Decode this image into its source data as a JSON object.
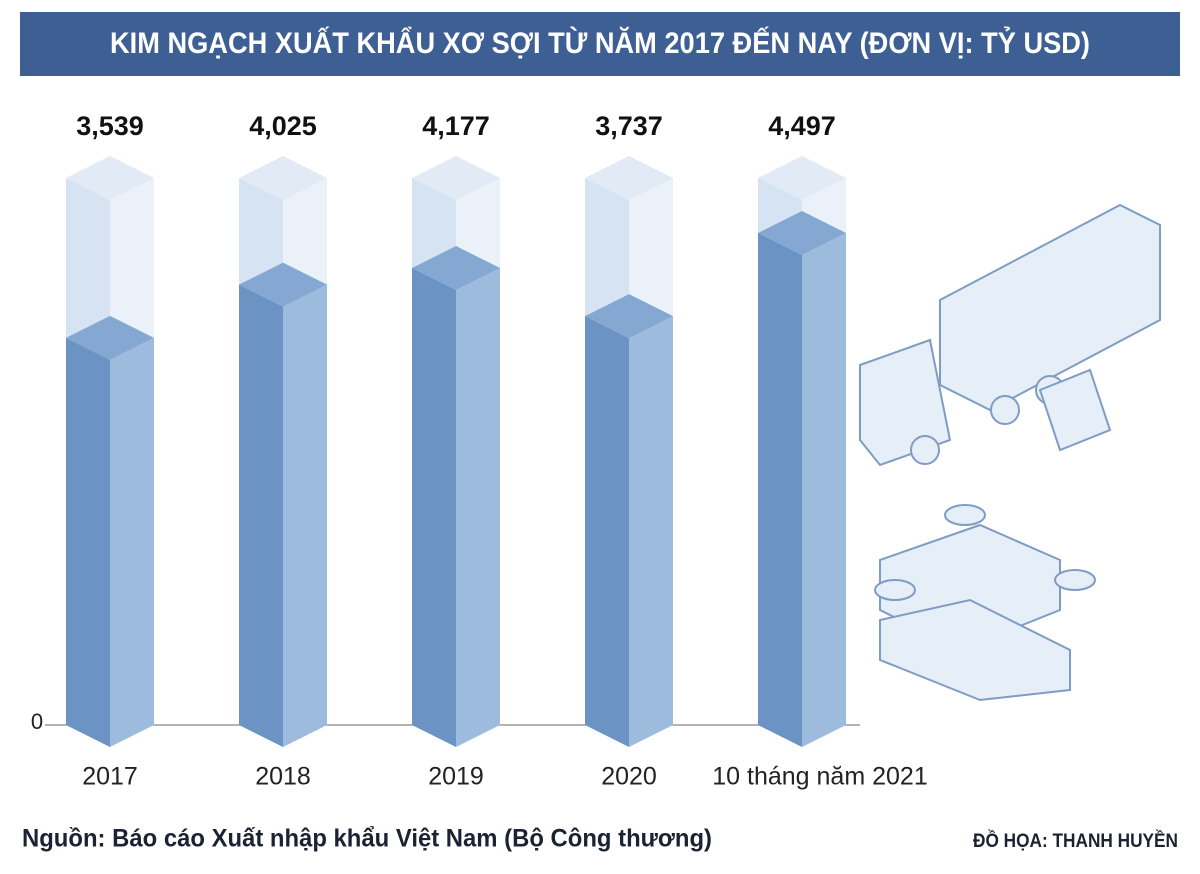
{
  "chart_data": {
    "type": "bar",
    "title": "KIM NGẠCH XUẤT KHẨU XƠ SỢI TỪ NĂM 2017 ĐẾN NAY (ĐƠN VỊ: TỶ USD)",
    "categories": [
      "2017",
      "2018",
      "2019",
      "2020",
      "10 tháng năm 2021"
    ],
    "values": [
      3.539,
      4.025,
      4.177,
      3.737,
      4.497
    ],
    "value_labels": [
      "3,539",
      "4,025",
      "4,177",
      "3,737",
      "4,497"
    ],
    "color": "#6b93c3",
    "ylim": [
      0,
      5
    ],
    "yticks": [
      0
    ],
    "source": "Nguồn: Báo cáo Xuất nhập khẩu Việt Nam (Bộ Công thương)",
    "credit": "ĐỒ HỌA: THANH HUYỀN"
  }
}
